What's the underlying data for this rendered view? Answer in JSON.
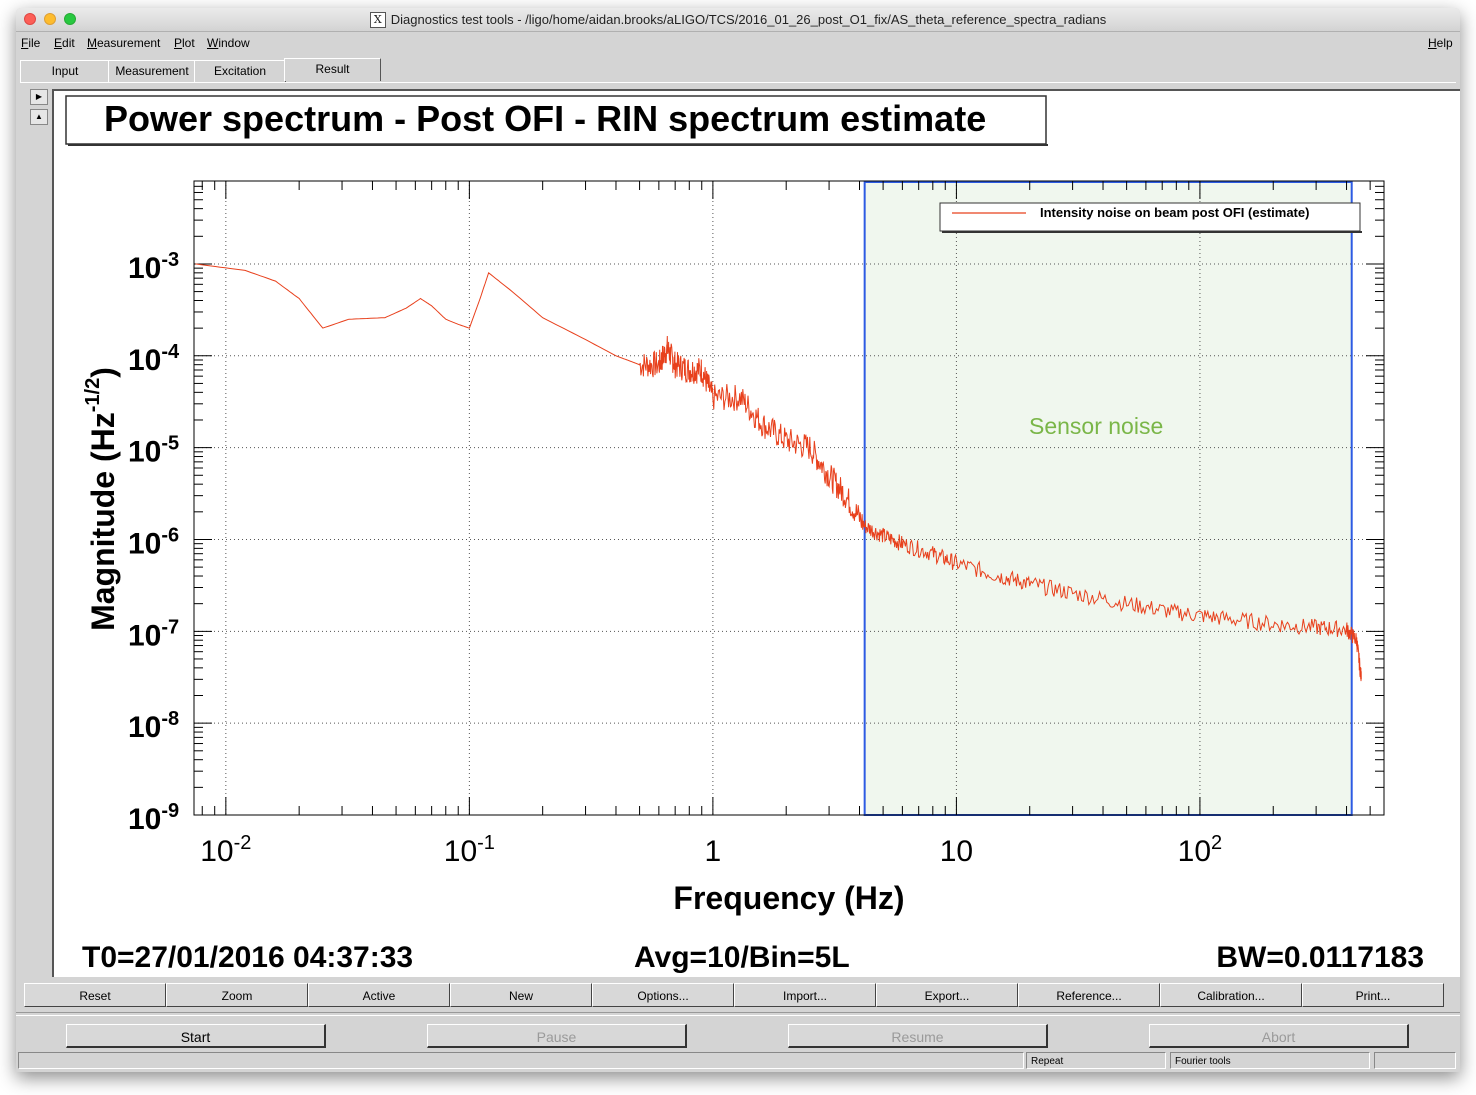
{
  "window": {
    "title": "Diagnostics test tools - /ligo/home/aidan.brooks/aLIGO/TCS/2016_01_26_post_O1_fix/AS_theta_reference_spectra_radians"
  },
  "menu": {
    "file": "File",
    "edit": "Edit",
    "measurement": "Measurement",
    "plot": "Plot",
    "window": "Window",
    "help": "Help"
  },
  "tabs": [
    {
      "label": "Input",
      "active": false
    },
    {
      "label": "Measurement",
      "active": false
    },
    {
      "label": "Excitation",
      "active": false
    },
    {
      "label": "Result",
      "active": true
    }
  ],
  "plot": {
    "title": "Power spectrum - Post OFI - RIN spectrum estimate",
    "xlabel": "Frequency (Hz)",
    "ylabel": "Magnitude (Hz",
    "ylabel_exp": "-1/2",
    "ylabel_close": ")",
    "x_ticks": [
      {
        "base": "10",
        "exp": "-2",
        "value": 0.01
      },
      {
        "base": "10",
        "exp": "-1",
        "value": 0.1
      },
      {
        "base": "1",
        "exp": "",
        "value": 1
      },
      {
        "base": "10",
        "exp": "",
        "value": 10
      },
      {
        "base": "10",
        "exp": "2",
        "value": 100
      }
    ],
    "y_ticks": [
      {
        "base": "10",
        "exp": "-3",
        "value": 0.001
      },
      {
        "base": "10",
        "exp": "-4",
        "value": 0.0001
      },
      {
        "base": "10",
        "exp": "-5",
        "value": 1e-05
      },
      {
        "base": "10",
        "exp": "-6",
        "value": 1e-06
      },
      {
        "base": "10",
        "exp": "-7",
        "value": 1e-07
      },
      {
        "base": "10",
        "exp": "-8",
        "value": 1e-08
      },
      {
        "base": "10",
        "exp": "-9",
        "value": 1e-09
      }
    ],
    "annotation": "Sensor noise",
    "t0": "T0=27/01/2016 04:37:33",
    "avg": "Avg=10/Bin=5L",
    "bw": "BW=0.0117183"
  },
  "chart_data": {
    "type": "line",
    "title": "Power spectrum - Post OFI - RIN spectrum estimate",
    "xlabel": "Frequency (Hz)",
    "ylabel": "Magnitude (Hz^-1/2)",
    "x_scale": "log",
    "y_scale": "log",
    "xlim": [
      0.0074,
      570
    ],
    "ylim": [
      1e-09,
      0.008
    ],
    "grid": true,
    "legend_position": "top-right",
    "series": [
      {
        "name": "Intensity noise on beam post OFI (estimate)",
        "color": "#e8401c",
        "x": [
          0.0075,
          0.012,
          0.016,
          0.02,
          0.025,
          0.032,
          0.045,
          0.055,
          0.063,
          0.07,
          0.08,
          0.09,
          0.1,
          0.11,
          0.12,
          0.15,
          0.2,
          0.3,
          0.4,
          0.5,
          0.6,
          0.65,
          0.7,
          0.8,
          0.9,
          1.0,
          1.3,
          1.6,
          2.0,
          2.5,
          3.0,
          3.5,
          4.2,
          5,
          6,
          8,
          10,
          15,
          20,
          30,
          50,
          80,
          120,
          200,
          300,
          400,
          440,
          460
        ],
        "y": [
          0.001,
          0.00085,
          0.00065,
          0.00042,
          0.0002,
          0.00025,
          0.00026,
          0.00033,
          0.00042,
          0.00035,
          0.00025,
          0.00022,
          0.0002,
          0.0004,
          0.0008,
          0.0005,
          0.00026,
          0.00015,
          0.0001,
          8e-05,
          8e-05,
          0.00012,
          8e-05,
          7e-05,
          7e-05,
          3.5e-05,
          3.5e-05,
          1.8e-05,
          1.2e-05,
          1e-05,
          5e-06,
          3e-06,
          1.4e-06,
          1.1e-06,
          9e-07,
          7e-07,
          5.5e-07,
          4e-07,
          3.3e-07,
          2.6e-07,
          2e-07,
          1.6e-07,
          1.4e-07,
          1.2e-07,
          1.1e-07,
          1.05e-07,
          8e-08,
          3e-08
        ]
      }
    ],
    "highlight_region": {
      "x_start": 4.2,
      "x_end": 420,
      "label": "Sensor noise",
      "fill": "#f0f7ee",
      "border": "#2d5be3",
      "label_color": "#7ab648"
    }
  },
  "buttons": [
    "Reset",
    "Zoom",
    "Active",
    "New",
    "Options...",
    "Import...",
    "Export...",
    "Reference...",
    "Calibration...",
    "Print..."
  ],
  "controls": {
    "start": "Start",
    "pause": "Pause",
    "resume": "Resume",
    "abort": "Abort"
  },
  "status": {
    "repeat": "Repeat",
    "fourier": "Fourier tools"
  }
}
